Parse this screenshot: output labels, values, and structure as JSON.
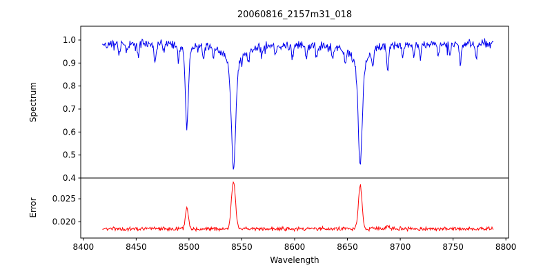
{
  "figure": {
    "background": "#ffffff",
    "axis_color": "#000000"
  },
  "chart_data": {
    "type": "line",
    "title": "20060816_2157m31_018",
    "xlabel": "Wavelength",
    "xlim": [
      8397.5,
      8802.5
    ],
    "x_range": [
      8418,
      8788
    ],
    "x_ticks": {
      "values": [
        8400,
        8450,
        8500,
        8550,
        8600,
        8650,
        8700,
        8750,
        8800
      ],
      "labels": [
        "8400",
        "8450",
        "8500",
        "8550",
        "8600",
        "8650",
        "8700",
        "8750",
        "8800"
      ]
    },
    "n_points": 640,
    "seed": 42,
    "legend": "none",
    "grid": false,
    "panels": [
      {
        "name": "spectrum",
        "ylabel": "Spectrum",
        "color": "#0000ee",
        "ylim": [
          0.4,
          1.06
        ],
        "y_ticks": {
          "values": [
            0.4,
            0.5,
            0.6,
            0.7,
            0.8,
            0.9,
            1.0
          ],
          "labels": [
            "0.4",
            "0.5",
            "0.6",
            "0.7",
            "0.8",
            "0.9",
            "1.0"
          ]
        },
        "continuum": 0.98,
        "continuum_wave": {
          "amplitude": 0.006,
          "period": 300
        },
        "noise_amplitude": 0.022,
        "spike_probability": 0.05,
        "spike_depth": 0.035,
        "absorption_lines": [
          {
            "center": 8498.0,
            "depth": 0.3,
            "sigma": 1.4,
            "wing_depth": 0.065,
            "wing_width": 4.5,
            "min_flux": 0.62
          },
          {
            "center": 8542.1,
            "depth": 0.385,
            "sigma": 1.9,
            "wing_depth": 0.165,
            "wing_width": 8.0,
            "min_flux": 0.43
          },
          {
            "center": 8662.1,
            "depth": 0.36,
            "sigma": 1.8,
            "wing_depth": 0.16,
            "wing_width": 7.0,
            "min_flux": 0.46
          }
        ],
        "minor_sigma": 0.9,
        "minor_lines": [
          [
            8434,
            0.05
          ],
          [
            8441,
            0.04
          ],
          [
            8452,
            0.055
          ],
          [
            8468,
            0.09
          ],
          [
            8476,
            0.045
          ],
          [
            8490,
            0.05
          ],
          [
            8514,
            0.07
          ],
          [
            8523,
            0.045
          ],
          [
            8556,
            0.05
          ],
          [
            8569,
            0.04
          ],
          [
            8582,
            0.055
          ],
          [
            8598,
            0.055
          ],
          [
            8611,
            0.045
          ],
          [
            8621,
            0.06
          ],
          [
            8636,
            0.045
          ],
          [
            8648,
            0.055
          ],
          [
            8674,
            0.06
          ],
          [
            8688,
            0.115
          ],
          [
            8702,
            0.045
          ],
          [
            8713,
            0.05
          ],
          [
            8719,
            0.06
          ],
          [
            8736,
            0.055
          ],
          [
            8747,
            0.045
          ],
          [
            8757,
            0.075
          ],
          [
            8772,
            0.05
          ]
        ]
      },
      {
        "name": "error",
        "ylabel": "Error",
        "color": "#ff0000",
        "ylim": [
          0.0165,
          0.0295
        ],
        "y_ticks": {
          "values": [
            0.02,
            0.025
          ],
          "labels": [
            "0.020",
            "0.025"
          ]
        },
        "baseline": 0.0185,
        "noise_amplitude": 0.0005,
        "peaks": [
          {
            "center": 8498.0,
            "height": 0.0045,
            "sigma": 1.4
          },
          {
            "center": 8542.1,
            "height": 0.0103,
            "sigma": 1.9
          },
          {
            "center": 8662.1,
            "height": 0.0094,
            "sigma": 1.7
          },
          {
            "center": 8688.0,
            "height": 0.0007,
            "sigma": 1.2
          }
        ]
      }
    ]
  }
}
